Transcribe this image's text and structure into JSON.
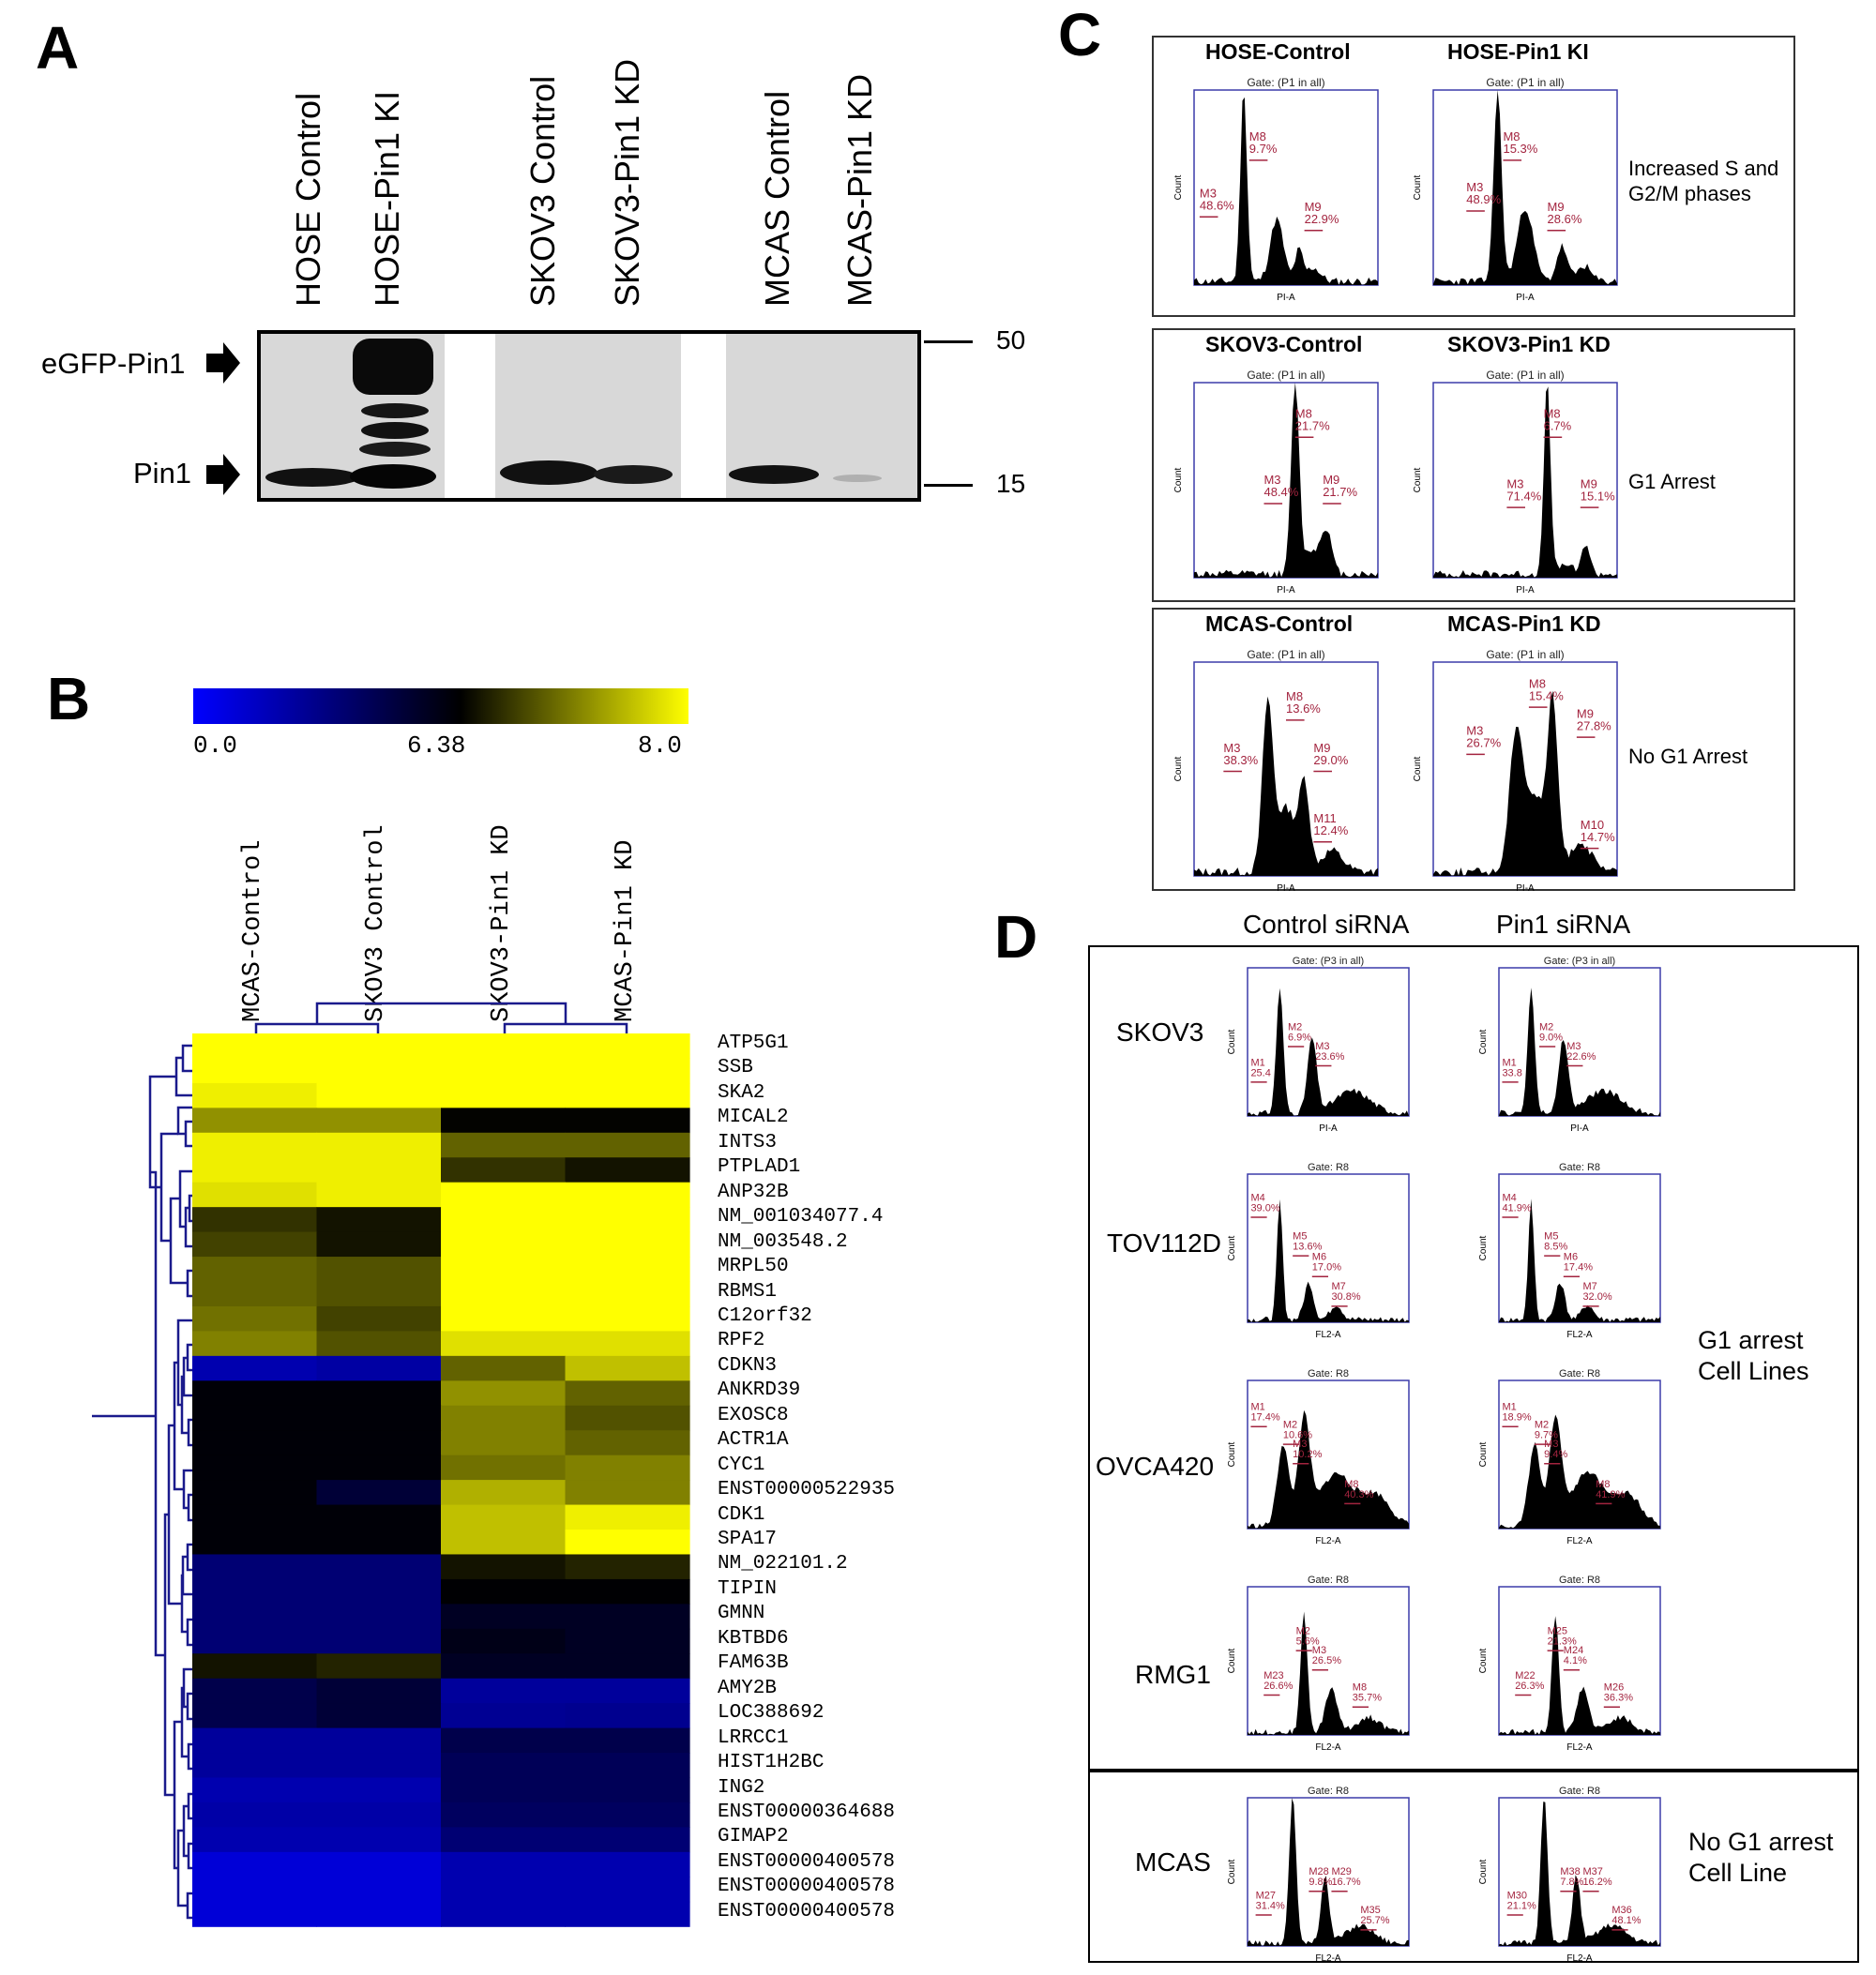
{
  "panel_a": {
    "label": "A",
    "lanes": [
      "HOSE Control",
      "HOSE-Pin1 KI",
      "SKOV3 Control",
      "SKOV3-Pin1 KD",
      "MCAS Control",
      "MCAS-Pin1 KD"
    ],
    "band_labels": {
      "egfp": "eGFP-Pin1",
      "pin1": "Pin1"
    },
    "markers": {
      "top": "50",
      "bottom": "15"
    }
  },
  "panel_b": {
    "label": "B",
    "scale": {
      "min": "0.0",
      "mid": "6.38",
      "max": "8.0",
      "colors": [
        "#0000ff",
        "#000000",
        "#ffff00"
      ]
    },
    "columns": [
      "MCAS-Control",
      "SKOV3 Control",
      "SKOV3-Pin1 KD",
      "MCAS-Pin1 KD"
    ],
    "genes": [
      "ATP5G1",
      "SSB",
      "SKA2",
      "MICAL2",
      "INTS3",
      "PTPLAD1",
      "ANP32B",
      "NM_001034077.4",
      "NM_003548.2",
      "MRPL50",
      "RBMS1",
      "C12orf32",
      "RPF2",
      "CDKN3",
      "ANKRD39",
      "EXOSC8",
      "ACTR1A",
      "CYC1",
      "ENST00000522935",
      "CDK1",
      "SPA17",
      "NM_022101.2",
      "TIPIN",
      "GMNN",
      "KBTBD6",
      "FAM63B",
      "AMY2B",
      "LOC388692",
      "LRRCC1",
      "HIST1H2BC",
      "ING2",
      "ENST00000364688",
      "GIMAP2",
      "ENST00000400578",
      "ENST00000400578",
      "ENST00000400578"
    ],
    "heat": [
      [
        8.0,
        8.0,
        8.0,
        8.0
      ],
      [
        8.0,
        8.0,
        8.0,
        8.0
      ],
      [
        7.9,
        8.0,
        8.0,
        8.0
      ],
      [
        7.3,
        7.3,
        6.4,
        6.4
      ],
      [
        7.9,
        7.9,
        7.0,
        7.0
      ],
      [
        7.9,
        7.9,
        6.7,
        6.5
      ],
      [
        7.8,
        7.9,
        8.0,
        8.0
      ],
      [
        6.7,
        6.5,
        8.0,
        8.0
      ],
      [
        6.8,
        6.5,
        8.0,
        8.0
      ],
      [
        7.0,
        6.9,
        8.0,
        8.0
      ],
      [
        7.0,
        6.9,
        8.0,
        8.0
      ],
      [
        7.1,
        6.8,
        8.0,
        8.0
      ],
      [
        7.2,
        6.9,
        7.8,
        7.8
      ],
      [
        2.0,
        2.3,
        7.0,
        7.6
      ],
      [
        6.2,
        6.2,
        7.3,
        7.0
      ],
      [
        6.2,
        6.2,
        7.2,
        6.9
      ],
      [
        6.2,
        6.2,
        7.2,
        7.0
      ],
      [
        6.2,
        6.2,
        7.1,
        7.2
      ],
      [
        6.2,
        5.0,
        7.5,
        7.2
      ],
      [
        6.2,
        6.2,
        7.6,
        7.9
      ],
      [
        6.2,
        6.2,
        7.6,
        8.0
      ],
      [
        3.5,
        3.5,
        6.5,
        6.6
      ],
      [
        3.5,
        3.5,
        6.3,
        6.3
      ],
      [
        3.5,
        3.5,
        5.5,
        5.5
      ],
      [
        3.5,
        3.5,
        5.8,
        5.5
      ],
      [
        6.5,
        6.6,
        5.5,
        5.5
      ],
      [
        4.5,
        5.0,
        2.5,
        2.5
      ],
      [
        4.5,
        5.0,
        2.7,
        2.8
      ],
      [
        2.5,
        2.5,
        4.5,
        4.5
      ],
      [
        2.5,
        2.5,
        4.2,
        4.2
      ],
      [
        2.0,
        2.0,
        4.2,
        4.2
      ],
      [
        2.2,
        2.2,
        4.0,
        4.0
      ],
      [
        2.0,
        2.0,
        3.5,
        3.5
      ],
      [
        1.0,
        1.0,
        2.0,
        2.0
      ],
      [
        1.0,
        1.0,
        2.0,
        2.0
      ],
      [
        1.0,
        1.0,
        2.0,
        2.0
      ]
    ]
  },
  "panel_c": {
    "label": "C",
    "gate": "Gate: (P1 in all)",
    "xaxis": "PI-A",
    "yaxis": "Count",
    "groups": [
      {
        "left_title": "HOSE-Control",
        "right_title": "HOSE-Pin1 KI",
        "note": [
          "Increased S and",
          "G2/M phases"
        ],
        "left_stats": [
          [
            "M8",
            "9.7%"
          ],
          [
            "M3",
            "48.6%"
          ],
          [
            "M9",
            "22.9%"
          ]
        ],
        "right_stats": [
          [
            "M8",
            "15.3%"
          ],
          [
            "M3",
            "48.9%"
          ],
          [
            "M9",
            "28.6%"
          ]
        ]
      },
      {
        "left_title": "SKOV3-Control",
        "right_title": "SKOV3-Pin1 KD",
        "note": [
          "G1 Arrest"
        ],
        "left_stats": [
          [
            "M8",
            "21.7%"
          ],
          [
            "M3",
            "48.4%"
          ],
          [
            "M9",
            "21.7%"
          ]
        ],
        "right_stats": [
          [
            "M8",
            "6.7%"
          ],
          [
            "M3",
            "71.4%"
          ],
          [
            "M9",
            "15.1%"
          ]
        ]
      },
      {
        "left_title": "MCAS-Control",
        "right_title": "MCAS-Pin1 KD",
        "note": [
          "No G1 Arrest"
        ],
        "left_stats": [
          [
            "M8",
            "13.6%"
          ],
          [
            "M3",
            "38.3%"
          ],
          [
            "M9",
            "29.0%"
          ],
          [
            "M11",
            "12.4%"
          ]
        ],
        "right_stats": [
          [
            "M8",
            "15.4%"
          ],
          [
            "M3",
            "26.7%"
          ],
          [
            "M9",
            "27.8%"
          ],
          [
            "M10",
            "14.7%"
          ]
        ]
      }
    ]
  },
  "panel_d": {
    "label": "D",
    "col_headers": [
      "Control siRNA",
      "Pin1 siRNA"
    ],
    "rows": [
      {
        "name": "SKOV3",
        "gate": "Gate: (P3 in all)",
        "xaxis": "PI-A",
        "left_stats": [
          [
            "M1",
            "25.4"
          ],
          [
            "M2",
            "6.9%"
          ],
          [
            "M3",
            "23.6%"
          ]
        ],
        "right_stats": [
          [
            "M1",
            "33.8"
          ],
          [
            "M2",
            "9.0%"
          ],
          [
            "M3",
            "22.6%"
          ]
        ]
      },
      {
        "name": "TOV112D",
        "gate": "Gate: R8",
        "xaxis": "FL2-A",
        "left_stats": [
          [
            "M4",
            "39.0%"
          ],
          [
            "M5",
            "13.6%"
          ],
          [
            "M6",
            "17.0%"
          ],
          [
            "M7",
            "30.8%"
          ]
        ],
        "right_stats": [
          [
            "M4",
            "41.9%"
          ],
          [
            "M5",
            "8.5%"
          ],
          [
            "M6",
            "17.4%"
          ],
          [
            "M7",
            "32.0%"
          ]
        ]
      },
      {
        "name": "OVCA420",
        "gate": "Gate: R8",
        "xaxis": "FL2-A",
        "left_stats": [
          [
            "M1",
            "17.4%"
          ],
          [
            "M2",
            "10.6%"
          ],
          [
            "M3",
            "10.2%"
          ],
          [
            "M8",
            "40.3%"
          ]
        ],
        "right_stats": [
          [
            "M1",
            "18.9%"
          ],
          [
            "M2",
            "9.7%"
          ],
          [
            "M3",
            "9.4%"
          ],
          [
            "M8",
            "41.9%"
          ]
        ]
      },
      {
        "name": "RMG1",
        "gate": "Gate: R8",
        "xaxis": "FL2-A",
        "left_stats": [
          [
            "M2",
            "5.6%"
          ],
          [
            "M3",
            "26.5%"
          ],
          [
            "M23",
            "26.6%"
          ],
          [
            "M8",
            "35.7%"
          ]
        ],
        "right_stats": [
          [
            "M25",
            "21.3%"
          ],
          [
            "M24",
            "4.1%"
          ],
          [
            "M22",
            "26.3%"
          ],
          [
            "M26",
            "36.3%"
          ]
        ]
      },
      {
        "name": "MCAS",
        "gate": "Gate: R8",
        "xaxis": "FL2-A",
        "left_stats": [
          [
            "M28",
            "9.8%"
          ],
          [
            "M29",
            "16.7%"
          ],
          [
            "M27",
            "31.4%"
          ],
          [
            "M35",
            "25.7%"
          ]
        ],
        "right_stats": [
          [
            "M38",
            "7.8%"
          ],
          [
            "M37",
            "16.2%"
          ],
          [
            "M30",
            "21.1%"
          ],
          [
            "M36",
            "48.1%"
          ]
        ]
      }
    ],
    "group_notes": {
      "g1": [
        "G1 arrest",
        "Cell Lines"
      ],
      "nog1": [
        "No G1 arrest",
        "Cell Line"
      ]
    }
  }
}
